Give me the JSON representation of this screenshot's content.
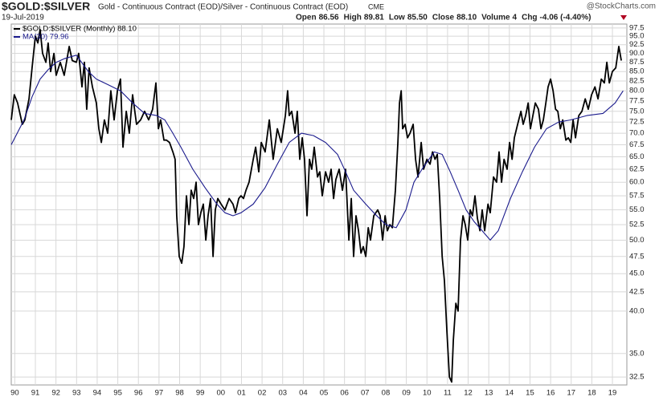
{
  "chart_data": {
    "type": "line",
    "title": "$GOLD:$SILVER",
    "subtitle": "Gold - Continuous Contract (EOD)/Silver - Continuous Contract (EOD)",
    "exchange": "CME",
    "source": "@StockCharts.com",
    "date": "19-Jul-2019",
    "quote": [
      {
        "label": "Open",
        "value": "86.56"
      },
      {
        "label": "High",
        "value": "89.81"
      },
      {
        "label": "Low",
        "value": "85.50"
      },
      {
        "label": "Close",
        "value": "88.10"
      },
      {
        "label": "Volume",
        "value": "4"
      },
      {
        "label": "Chg",
        "value": "-4.06 (-4.40%)"
      }
    ],
    "ylog": true,
    "grid": true,
    "xlim": [
      1989.83,
      2019.7
    ],
    "ylim": [
      31.7,
      98.7
    ],
    "xticks": [
      {
        "value": 1990,
        "label": "90"
      },
      {
        "value": 1991,
        "label": "91"
      },
      {
        "value": 1992,
        "label": "92"
      },
      {
        "value": 1993,
        "label": "93"
      },
      {
        "value": 1994,
        "label": "94"
      },
      {
        "value": 1995,
        "label": "95"
      },
      {
        "value": 1996,
        "label": "96"
      },
      {
        "value": 1997,
        "label": "97"
      },
      {
        "value": 1998,
        "label": "98"
      },
      {
        "value": 1999,
        "label": "99"
      },
      {
        "value": 2000,
        "label": "00"
      },
      {
        "value": 2001,
        "label": "01"
      },
      {
        "value": 2002,
        "label": "02"
      },
      {
        "value": 2003,
        "label": "03"
      },
      {
        "value": 2004,
        "label": "04"
      },
      {
        "value": 2005,
        "label": "05"
      },
      {
        "value": 2006,
        "label": "06"
      },
      {
        "value": 2007,
        "label": "07"
      },
      {
        "value": 2008,
        "label": "08"
      },
      {
        "value": 2009,
        "label": "09"
      },
      {
        "value": 2010,
        "label": "10"
      },
      {
        "value": 2011,
        "label": "11"
      },
      {
        "value": 2012,
        "label": "12"
      },
      {
        "value": 2013,
        "label": "13"
      },
      {
        "value": 2014,
        "label": "14"
      },
      {
        "value": 2015,
        "label": "15"
      },
      {
        "value": 2016,
        "label": "16"
      },
      {
        "value": 2017,
        "label": "17"
      },
      {
        "value": 2018,
        "label": "18"
      },
      {
        "value": 2019,
        "label": "19"
      }
    ],
    "yticks": [
      32.5,
      {
        "value": 35,
        "label": "35.0"
      },
      {
        "value": 40,
        "label": "40.0"
      },
      42.5,
      {
        "value": 45,
        "label": "45.0"
      },
      47.5,
      {
        "value": 50,
        "label": "50.0"
      },
      52.5,
      {
        "value": 55,
        "label": "55.0"
      },
      57.5,
      {
        "value": 60,
        "label": "60.0"
      },
      62.5,
      {
        "value": 65,
        "label": "65.0"
      },
      67.5,
      {
        "value": 70,
        "label": "70.0"
      },
      72.5,
      {
        "value": 75,
        "label": "75.0"
      },
      77.5,
      {
        "value": 80,
        "label": "80.0"
      },
      82.5,
      {
        "value": 85,
        "label": "85.0"
      },
      87.5,
      {
        "value": 90,
        "label": "90.0"
      },
      92.5,
      {
        "value": 95,
        "label": "95.0"
      },
      97.5
    ],
    "series": [
      {
        "name": "$GOLD:$SILVER (Monthly) 88.10",
        "color": "#000000",
        "x": [
          1989.83,
          1989.98,
          1990.14,
          1990.37,
          1990.49,
          1990.69,
          1990.84,
          1991.0,
          1991.12,
          1991.23,
          1991.35,
          1991.51,
          1991.62,
          1991.74,
          1991.9,
          1992.01,
          1992.21,
          1992.4,
          1992.64,
          1992.79,
          1992.99,
          1993.1,
          1993.26,
          1993.38,
          1993.49,
          1993.61,
          1993.77,
          1993.96,
          1994.08,
          1994.2,
          1994.35,
          1994.51,
          1994.66,
          1994.82,
          1994.98,
          1995.13,
          1995.25,
          1995.41,
          1995.56,
          1995.72,
          1995.91,
          1996.11,
          1996.3,
          1996.5,
          1996.69,
          1996.85,
          1996.97,
          1997.08,
          1997.24,
          1997.36,
          1997.51,
          1997.67,
          1997.78,
          1997.86,
          1997.98,
          1998.1,
          1998.21,
          1998.33,
          1998.45,
          1998.56,
          1998.68,
          1998.8,
          1998.91,
          1999.03,
          1999.15,
          1999.27,
          1999.38,
          1999.5,
          1999.62,
          1999.73,
          1999.85,
          2000.01,
          2000.2,
          2000.4,
          2000.59,
          2000.71,
          2000.87,
          2000.98,
          2001.1,
          2001.22,
          2001.37,
          2001.57,
          2001.69,
          2001.84,
          2001.96,
          2002.15,
          2002.35,
          2002.54,
          2002.74,
          2002.93,
          2003.13,
          2003.24,
          2003.32,
          2003.44,
          2003.6,
          2003.71,
          2003.83,
          2003.95,
          2004.06,
          2004.18,
          2004.3,
          2004.41,
          2004.53,
          2004.69,
          2004.8,
          2004.92,
          2005.08,
          2005.23,
          2005.35,
          2005.47,
          2005.58,
          2005.74,
          2005.9,
          2006.05,
          2006.21,
          2006.33,
          2006.44,
          2006.56,
          2006.68,
          2006.8,
          2006.91,
          2007.03,
          2007.15,
          2007.26,
          2007.42,
          2007.61,
          2007.73,
          2007.85,
          2007.97,
          2008.08,
          2008.2,
          2008.32,
          2008.47,
          2008.59,
          2008.67,
          2008.75,
          2008.82,
          2008.94,
          2009.06,
          2009.18,
          2009.33,
          2009.45,
          2009.57,
          2009.72,
          2009.84,
          2010.0,
          2010.15,
          2010.27,
          2010.39,
          2010.5,
          2010.62,
          2010.74,
          2010.85,
          2010.97,
          2011.09,
          2011.2,
          2011.28,
          2011.4,
          2011.51,
          2011.63,
          2011.75,
          2011.86,
          2011.98,
          2012.1,
          2012.21,
          2012.33,
          2012.45,
          2012.57,
          2012.68,
          2012.8,
          2012.96,
          2013.07,
          2013.23,
          2013.38,
          2013.5,
          2013.62,
          2013.74,
          2013.89,
          2014.01,
          2014.13,
          2014.24,
          2014.4,
          2014.56,
          2014.67,
          2014.79,
          2014.91,
          2015.02,
          2015.14,
          2015.26,
          2015.41,
          2015.53,
          2015.65,
          2015.77,
          2015.88,
          2016.0,
          2016.12,
          2016.24,
          2016.35,
          2016.47,
          2016.59,
          2016.74,
          2016.86,
          2016.98,
          2017.09,
          2017.21,
          2017.37,
          2017.52,
          2017.68,
          2017.83,
          2017.99,
          2018.15,
          2018.3,
          2018.46,
          2018.61,
          2018.73,
          2018.85,
          2019.0,
          2019.16,
          2019.31,
          2019.43
        ],
        "values": [
          73,
          79,
          77,
          72,
          73,
          78,
          86,
          95,
          93,
          97,
          90,
          87.5,
          93,
          85,
          90,
          84,
          87.5,
          84,
          92,
          88,
          87.5,
          90,
          81,
          87.5,
          75.5,
          86,
          81,
          77,
          71,
          68,
          73,
          70,
          80,
          73,
          80,
          83,
          67,
          75,
          70,
          79,
          72,
          73,
          75,
          73,
          75.5,
          82,
          71,
          73,
          68.5,
          68.5,
          68,
          66,
          64.5,
          54,
          47.5,
          46.5,
          49,
          57.5,
          52.5,
          58.5,
          57,
          60,
          52.5,
          54.5,
          56,
          50,
          54,
          57,
          47.5,
          55,
          57,
          56,
          55,
          57,
          56,
          54.5,
          57,
          57.5,
          57,
          58.5,
          60,
          64.5,
          67,
          62,
          68,
          66,
          73,
          64.5,
          71,
          68,
          74,
          80,
          74,
          75,
          70,
          75,
          64.5,
          69,
          64.5,
          54,
          64.5,
          62.5,
          67,
          61,
          62,
          57.5,
          62,
          60,
          62.5,
          57,
          60.5,
          62.5,
          58.5,
          62.5,
          50,
          57,
          47.5,
          54,
          51.5,
          48,
          49,
          47.5,
          52,
          50,
          54,
          55,
          54,
          50,
          54,
          51.5,
          52.5,
          52,
          58.5,
          68,
          77,
          80,
          71,
          72,
          69,
          70,
          72,
          64.5,
          61,
          68,
          62.5,
          64.5,
          63.5,
          66,
          64.5,
          65.5,
          57,
          47.5,
          44,
          37.5,
          32.5,
          32,
          36.5,
          41,
          40,
          50,
          54,
          52.5,
          50,
          55,
          54,
          57.5,
          53.5,
          51.5,
          55,
          51.5,
          56,
          54.5,
          61,
          60,
          66,
          60,
          64.5,
          62.5,
          68,
          64.5,
          69,
          72,
          75,
          72,
          74,
          77,
          71,
          74,
          77,
          75.5,
          71,
          73,
          77,
          81,
          83,
          80,
          75.5,
          75,
          71,
          73,
          68.5,
          69,
          68,
          73,
          69,
          74,
          75,
          78,
          75.5,
          79,
          81,
          78,
          83,
          82,
          87.5,
          82,
          85,
          86,
          92,
          88
        ]
      },
      {
        "name": "MA(30) 79.96",
        "color": "#1a1a8c",
        "x": [
          1989.83,
          1990.06,
          1990.45,
          1990.84,
          1991.23,
          1991.62,
          1992.01,
          1992.4,
          1992.99,
          1993.18,
          1993.57,
          1993.96,
          1994.55,
          1995.13,
          1995.72,
          1996.3,
          1996.89,
          1997.28,
          1997.67,
          1998.06,
          1998.64,
          1999.23,
          1999.81,
          2000.2,
          2000.59,
          2000.98,
          2001.57,
          2002.15,
          2002.74,
          2003.32,
          2003.91,
          2004.49,
          2005.08,
          2005.66,
          2006.05,
          2006.44,
          2007.03,
          2007.42,
          2008.0,
          2008.51,
          2008.98,
          2009.37,
          2009.76,
          2010.35,
          2010.74,
          2011.13,
          2011.51,
          2011.9,
          2012.29,
          2012.68,
          2013.07,
          2013.46,
          2014.05,
          2014.63,
          2015.22,
          2015.8,
          2016.39,
          2016.98,
          2017.76,
          2018.54,
          2019.13,
          2019.52
        ],
        "values": [
          67.5,
          69.5,
          73,
          78.5,
          83,
          85.5,
          87.5,
          88.5,
          89.5,
          88,
          85,
          83,
          81.5,
          80,
          77,
          74.5,
          74,
          73,
          70,
          67,
          62.5,
          59,
          56,
          54.5,
          54,
          54.5,
          56,
          59,
          63.5,
          68,
          70,
          69.5,
          68,
          65.5,
          62,
          58.5,
          56,
          54.5,
          52.5,
          52,
          55,
          60,
          62.5,
          66,
          65.5,
          62,
          58.5,
          55,
          53,
          51.5,
          50,
          51.5,
          57,
          62,
          67,
          71,
          72.5,
          73,
          74,
          74.5,
          77,
          80
        ]
      }
    ]
  }
}
